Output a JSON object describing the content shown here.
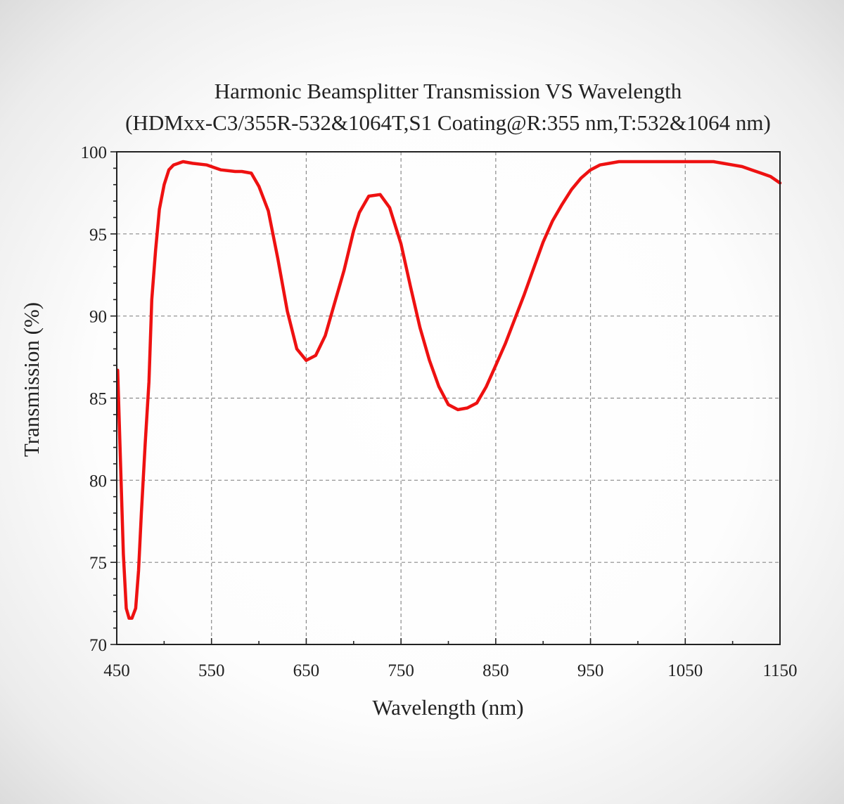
{
  "chart_data": {
    "type": "line",
    "title": "Harmonic Beamsplitter Transmission VS Wavelength",
    "subtitle": "(HDMxx-C3/355R-532&1064T,S1 Coating@R:355 nm,T:532&1064 nm)",
    "xlabel": "Wavelength (nm)",
    "ylabel": "Transmission (%)",
    "xlim": [
      450,
      1150
    ],
    "ylim": [
      70,
      100
    ],
    "x_ticks": [
      450,
      550,
      650,
      750,
      850,
      950,
      1050,
      1150
    ],
    "y_ticks": [
      70,
      75,
      80,
      85,
      90,
      95,
      100
    ],
    "x_tick_labels": [
      "450",
      "550",
      "650",
      "750",
      "850",
      "950",
      "1050",
      "1150"
    ],
    "y_tick_labels": [
      "70",
      "75",
      "80",
      "85",
      "90",
      "95",
      "100"
    ],
    "grid": true,
    "legend": "none",
    "line_color": "#ee1111",
    "series": [
      {
        "x": [
          451,
          454,
          457,
          460,
          463,
          466,
          470,
          473,
          476,
          480,
          484,
          487,
          491,
          495,
          500,
          505,
          510,
          520,
          530,
          545,
          560,
          575,
          582,
          592,
          600,
          610,
          620,
          630,
          640,
          650,
          660,
          670,
          680,
          690,
          700,
          706,
          716,
          728,
          738,
          750,
          760,
          770,
          780,
          790,
          800,
          810,
          820,
          830,
          840,
          850,
          860,
          870,
          880,
          890,
          900,
          910,
          920,
          930,
          940,
          950,
          960,
          970,
          980,
          990,
          1000,
          1020,
          1040,
          1060,
          1080,
          1090,
          1100,
          1110,
          1120,
          1130,
          1140,
          1150
        ],
        "values": [
          86.7,
          81.0,
          75.5,
          72.2,
          71.6,
          71.6,
          72.2,
          74.5,
          78.0,
          82.2,
          86.0,
          91.0,
          94.0,
          96.5,
          98.0,
          98.9,
          99.2,
          99.4,
          99.3,
          99.2,
          98.9,
          98.8,
          98.8,
          98.7,
          97.9,
          96.4,
          93.5,
          90.3,
          88.0,
          87.3,
          87.6,
          88.8,
          90.8,
          92.8,
          95.2,
          96.3,
          97.3,
          97.4,
          96.6,
          94.4,
          91.8,
          89.3,
          87.3,
          85.7,
          84.6,
          84.3,
          84.4,
          84.7,
          85.7,
          87.0,
          88.3,
          89.8,
          91.3,
          92.9,
          94.5,
          95.8,
          96.8,
          97.7,
          98.4,
          98.9,
          99.2,
          99.3,
          99.4,
          99.4,
          99.4,
          99.4,
          99.4,
          99.4,
          99.4,
          99.3,
          99.2,
          99.1,
          98.9,
          98.7,
          98.5,
          98.1
        ]
      }
    ]
  }
}
